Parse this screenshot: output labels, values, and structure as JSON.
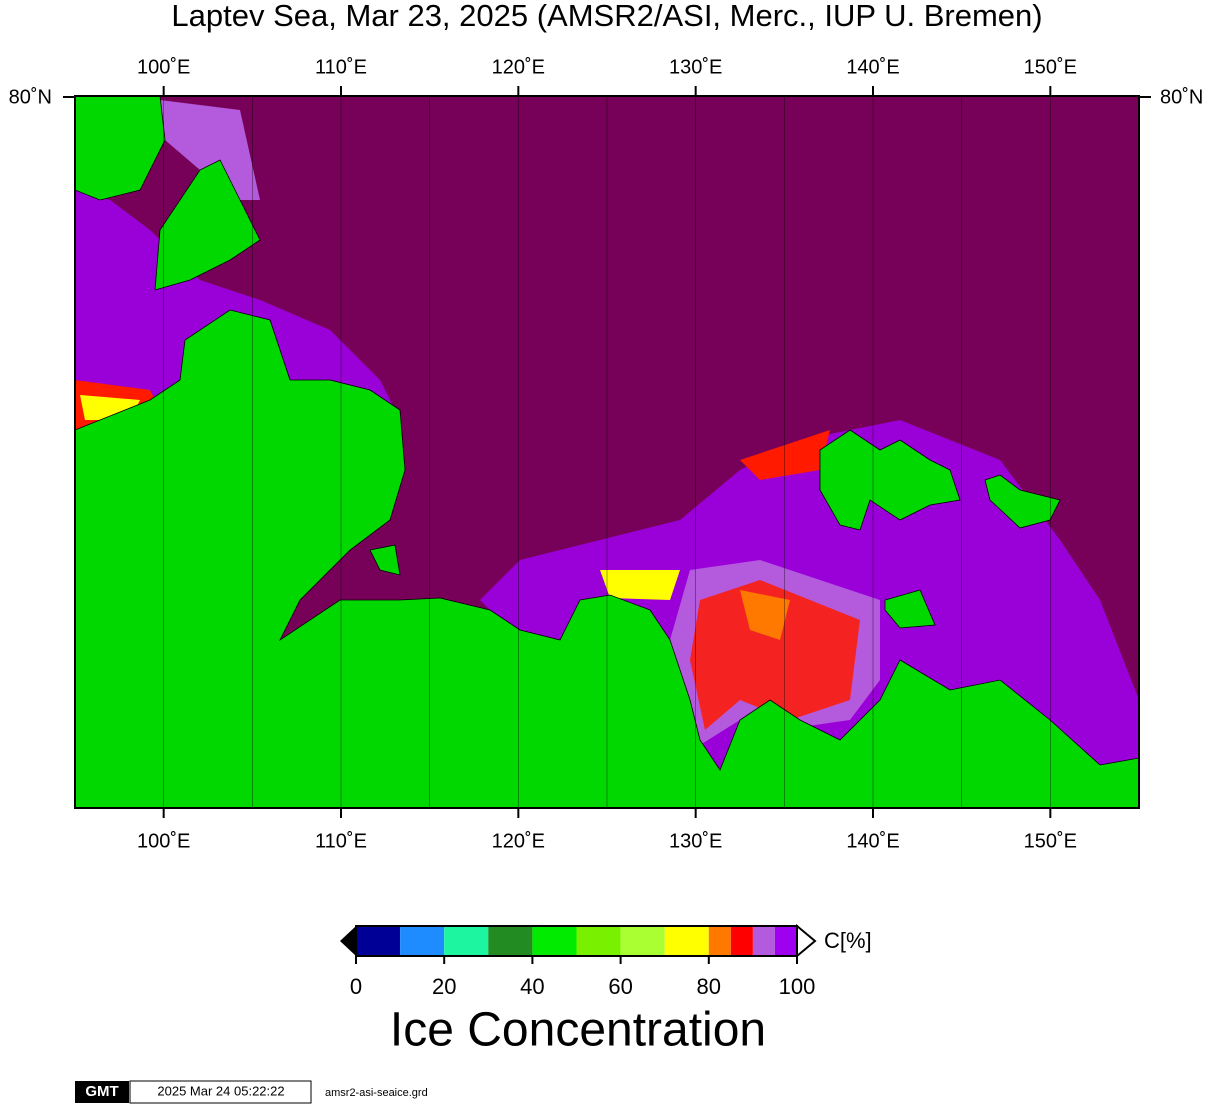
{
  "header": {
    "title": "Laptev Sea, Mar 23, 2025 (AMSR2/ASI, Merc., IUP U. Bremen)"
  },
  "map": {
    "lon_range": [
      95,
      155
    ],
    "lon_ticks": [
      {
        "value": 100,
        "label": "100˚E"
      },
      {
        "value": 110,
        "label": "110˚E"
      },
      {
        "value": 120,
        "label": "120˚E"
      },
      {
        "value": 130,
        "label": "130˚E"
      },
      {
        "value": 140,
        "label": "140˚E"
      },
      {
        "value": 150,
        "label": "150˚E"
      }
    ],
    "lon_grid": [
      100,
      105,
      110,
      115,
      120,
      125,
      130,
      135,
      140,
      145,
      150
    ],
    "lat_label": "80˚N"
  },
  "colorbar": {
    "bins": [
      0,
      10,
      20,
      30,
      40,
      50,
      60,
      70,
      80,
      85,
      90,
      95,
      100
    ],
    "colors": [
      "#000096",
      "#1e8cff",
      "#1ef5a0",
      "#228b22",
      "#00eb00",
      "#78f000",
      "#aaff32",
      "#ffff00",
      "#ff7800",
      "#ff0000",
      "#b45adc",
      "#a000f0"
    ],
    "ticks": [
      0,
      20,
      40,
      60,
      80,
      100
    ],
    "unit": "C[%]",
    "label": "Ice Concentration"
  },
  "footer": {
    "logo": "GMT",
    "timestamp": "2025 Mar 24 05:22:22",
    "file": "amsr2-asi-seaice.grd"
  }
}
